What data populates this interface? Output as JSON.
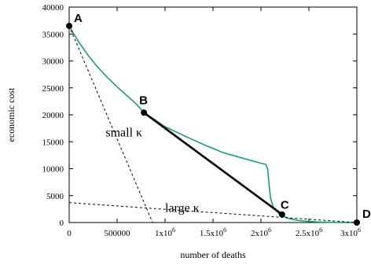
{
  "chart_data": {
    "type": "line",
    "xlabel": "number of deaths",
    "ylabel": "economic cost",
    "xlim": [
      0,
      3000000
    ],
    "ylim": [
      0,
      40000
    ],
    "x_ticks": [
      {
        "value": 0,
        "label": "0"
      },
      {
        "value": 500000,
        "label": "500000"
      },
      {
        "value": 1000000,
        "label": "1x10",
        "exp": "6"
      },
      {
        "value": 1500000,
        "label": "1.5x10",
        "exp": "6"
      },
      {
        "value": 2000000,
        "label": "2x10",
        "exp": "6"
      },
      {
        "value": 2500000,
        "label": "2.5x10",
        "exp": "6"
      },
      {
        "value": 3000000,
        "label": "3x10",
        "exp": "6"
      }
    ],
    "y_ticks": [
      {
        "value": 0,
        "label": "0"
      },
      {
        "value": 5000,
        "label": "5000"
      },
      {
        "value": 10000,
        "label": "10000"
      },
      {
        "value": 15000,
        "label": "15000"
      },
      {
        "value": 20000,
        "label": "20000"
      },
      {
        "value": 25000,
        "label": "25000"
      },
      {
        "value": 30000,
        "label": "30000"
      },
      {
        "value": 35000,
        "label": "35000"
      },
      {
        "value": 40000,
        "label": "40000"
      }
    ],
    "series": [
      {
        "style": "solid",
        "color": "#1a9c7a",
        "x": [
          0,
          100000,
          200000,
          300000,
          400000,
          500000,
          600000,
          700000,
          780000,
          900000,
          1000000,
          1200000,
          1400000,
          1600000,
          1800000,
          1900000,
          2000000,
          2050000,
          2070000,
          2085000,
          2100000,
          2130000,
          2200000,
          2300000,
          2400000,
          2500000,
          2600000,
          2700000,
          2800000,
          2900000,
          3000000
        ],
        "y": [
          36500,
          33500,
          31000,
          28800,
          26900,
          25200,
          23600,
          22000,
          20400,
          19000,
          17800,
          16100,
          14500,
          13000,
          12000,
          11500,
          11000,
          10800,
          10000,
          7000,
          4500,
          2800,
          1400,
          700,
          350,
          200,
          100,
          60,
          30,
          10,
          0
        ]
      },
      {
        "style": "solid-bold",
        "color": "#000000",
        "x": [
          780000,
          2220000
        ],
        "y": [
          20400,
          1500
        ]
      },
      {
        "style": "dashed",
        "color": "#000000",
        "x": [
          0,
          870000
        ],
        "y": [
          36500,
          0
        ]
      },
      {
        "style": "dashed",
        "color": "#000000",
        "x": [
          0,
          3000000
        ],
        "y": [
          3700,
          0
        ]
      }
    ],
    "points": [
      {
        "label": "A",
        "x": 0,
        "y": 36500
      },
      {
        "label": "B",
        "x": 780000,
        "y": 20400
      },
      {
        "label": "C",
        "x": 2220000,
        "y": 1500
      },
      {
        "label": "D",
        "x": 3000000,
        "y": 0
      }
    ],
    "annotations": [
      {
        "text": "small κ",
        "x": 380000,
        "y": 16000
      },
      {
        "text": "large κ",
        "x": 1000000,
        "y": 2000
      }
    ]
  }
}
